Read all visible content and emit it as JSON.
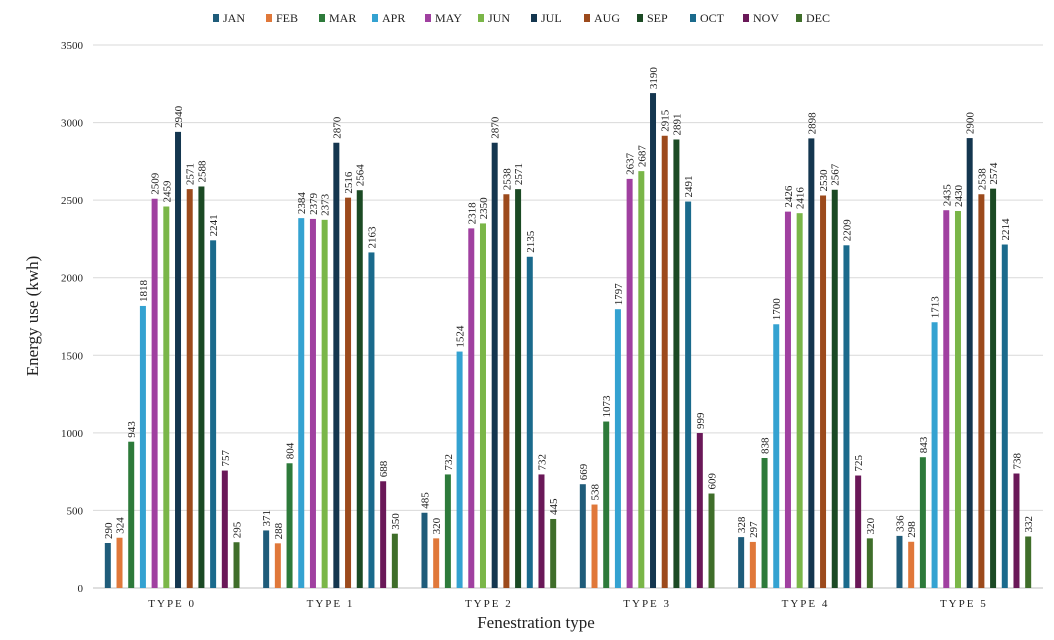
{
  "chart_data": {
    "type": "bar",
    "title": "",
    "xlabel": "Fenestration type",
    "ylabel": "Energy use (kwh)",
    "ylim": [
      0,
      3500
    ],
    "yticks": [
      0,
      500,
      1000,
      1500,
      2000,
      2500,
      3000,
      3500
    ],
    "grid": true,
    "legend_position": "top",
    "categories": [
      "TYPE 0",
      "TYPE 1",
      "TYPE 2",
      "TYPE 3",
      "TYPE 4",
      "TYPE 5"
    ],
    "series": [
      {
        "name": "JAN",
        "color": "#1f5c7a",
        "values": [
          290,
          371,
          485,
          669,
          328,
          336
        ]
      },
      {
        "name": "FEB",
        "color": "#e0783a",
        "values": [
          324,
          288,
          320,
          538,
          297,
          298
        ]
      },
      {
        "name": "MAR",
        "color": "#2d7a3a",
        "values": [
          943,
          804,
          732,
          1073,
          838,
          843
        ]
      },
      {
        "name": "APR",
        "color": "#34a2d1",
        "values": [
          1818,
          2384,
          1524,
          1797,
          1700,
          1713
        ]
      },
      {
        "name": "MAY",
        "color": "#a040a0",
        "values": [
          2509,
          2379,
          2318,
          2637,
          2426,
          2435
        ]
      },
      {
        "name": "JUN",
        "color": "#7ab648",
        "values": [
          2459,
          2373,
          2350,
          2687,
          2416,
          2430
        ]
      },
      {
        "name": "JUL",
        "color": "#14364f",
        "values": [
          2940,
          2870,
          2870,
          3190,
          2898,
          2900
        ]
      },
      {
        "name": "AUG",
        "color": "#9c4a1c",
        "values": [
          2571,
          2516,
          2538,
          2915,
          2530,
          2538
        ]
      },
      {
        "name": "SEP",
        "color": "#1b4a24",
        "values": [
          2588,
          2564,
          2571,
          2891,
          2567,
          2574
        ]
      },
      {
        "name": "OCT",
        "color": "#1a6a8c",
        "values": [
          2241,
          2163,
          2135,
          2491,
          2209,
          2214
        ]
      },
      {
        "name": "NOV",
        "color": "#6a1858",
        "values": [
          757,
          688,
          732,
          999,
          725,
          738
        ]
      },
      {
        "name": "DEC",
        "color": "#3f6e2a",
        "values": [
          295,
          350,
          445,
          609,
          320,
          332
        ]
      }
    ]
  }
}
